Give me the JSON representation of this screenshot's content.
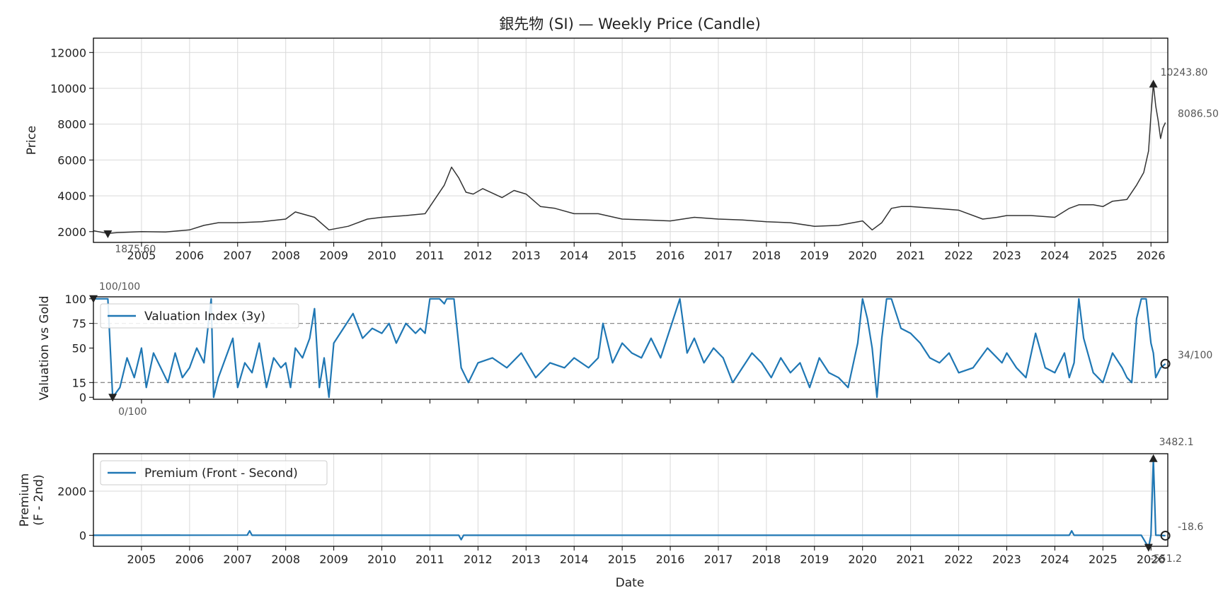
{
  "title": "銀先物 (SI) — Weekly Price (Candle)",
  "colors": {
    "price": "#333333",
    "series": "#1f77b4",
    "grid": "#d9d9d9",
    "ref": "#8c8c8c",
    "annot": "#555555",
    "frame": "#000000"
  },
  "x_ticks": [
    "2005",
    "2006",
    "2007",
    "2008",
    "2009",
    "2010",
    "2011",
    "2012",
    "2013",
    "2014",
    "2015",
    "2016",
    "2017",
    "2018",
    "2019",
    "2020",
    "2021",
    "2022",
    "2023",
    "2024",
    "2025",
    "2026"
  ],
  "x_ticks_bottom": [
    "2005",
    "2006",
    "2007",
    "2008",
    "2009",
    "2010",
    "2011",
    "2012",
    "2013",
    "2014",
    "2015",
    "2016",
    "2017",
    "2018",
    "2019",
    "2020",
    "2021",
    "2022",
    "2023",
    "2024",
    "2025",
    "2026"
  ],
  "xlabel": "Date",
  "chart_data": [
    {
      "type": "line",
      "title": "銀先物 (SI) — Weekly Price (Candle)",
      "ylabel": "Price",
      "ylim": [
        1400,
        12800
      ],
      "xlim": [
        2004.0,
        2026.35
      ],
      "yticks": [
        "2000",
        "4000",
        "6000",
        "8000",
        "10000",
        "12000"
      ],
      "grid": true,
      "series": [
        {
          "x": [
            2004.0,
            2004.3,
            2004.5,
            2005.0,
            2005.5,
            2006.0,
            2006.3,
            2006.6,
            2007.0,
            2007.5,
            2008.0,
            2008.2,
            2008.6,
            2008.9,
            2009.3,
            2009.7,
            2010.0,
            2010.5,
            2010.9,
            2011.1,
            2011.3,
            2011.45,
            2011.6,
            2011.75,
            2011.9,
            2012.1,
            2012.5,
            2012.75,
            2013.0,
            2013.3,
            2013.6,
            2014.0,
            2014.5,
            2015.0,
            2015.5,
            2016.0,
            2016.5,
            2017.0,
            2017.5,
            2018.0,
            2018.5,
            2019.0,
            2019.5,
            2020.0,
            2020.2,
            2020.4,
            2020.6,
            2020.8,
            2021.0,
            2021.5,
            2022.0,
            2022.5,
            2022.8,
            2023.0,
            2023.5,
            2024.0,
            2024.3,
            2024.5,
            2024.8,
            2025.0,
            2025.2,
            2025.5,
            2025.7,
            2025.85,
            2025.95,
            2026.0,
            2026.05,
            2026.1,
            2026.15,
            2026.2,
            2026.25,
            2026.3
          ],
          "y": [
            2050,
            1900,
            1950,
            2000,
            1980,
            2100,
            2350,
            2500,
            2500,
            2550,
            2700,
            3100,
            2800,
            2100,
            2300,
            2700,
            2800,
            2900,
            3000,
            3800,
            4600,
            5600,
            5000,
            4200,
            4100,
            4400,
            3900,
            4300,
            4100,
            3400,
            3300,
            3000,
            3000,
            2700,
            2650,
            2600,
            2800,
            2700,
            2650,
            2550,
            2500,
            2300,
            2350,
            2600,
            2100,
            2500,
            3300,
            3400,
            3400,
            3300,
            3200,
            2700,
            2800,
            2900,
            2900,
            2800,
            3300,
            3500,
            3500,
            3400,
            3700,
            3800,
            4600,
            5300,
            6500,
            8500,
            10243.8,
            9000,
            8200,
            7200,
            7800,
            8086.5
          ],
          "name": "",
          "drawn_as": "weekly candles (dark grey)"
        }
      ],
      "annotations": [
        {
          "label": "1875.60",
          "x": 2004.3,
          "y": 1875.6,
          "marker": "down-triangle"
        },
        {
          "label": "10243.80",
          "x": 2026.05,
          "y": 10243.8,
          "marker": "up-triangle"
        },
        {
          "label": "8086.50",
          "x": 2026.3,
          "y": 8086.5,
          "marker": "none"
        }
      ]
    },
    {
      "type": "line",
      "ylabel": "Valuation vs Gold",
      "ylim": [
        -2,
        102
      ],
      "xlim": [
        2004.0,
        2026.35
      ],
      "yticks": [
        "0",
        "15",
        "50",
        "75",
        "100"
      ],
      "reference_lines": [
        75,
        15
      ],
      "grid": false,
      "legend": "upper-left",
      "series": [
        {
          "name": "Valuation Index (3y)",
          "x": [
            2004.0,
            2004.1,
            2004.25,
            2004.3,
            2004.4,
            2004.55,
            2004.7,
            2004.85,
            2005.0,
            2005.1,
            2005.25,
            2005.4,
            2005.55,
            2005.7,
            2005.85,
            2006.0,
            2006.15,
            2006.3,
            2006.45,
            2006.5,
            2006.6,
            2006.75,
            2006.9,
            2007.0,
            2007.15,
            2007.3,
            2007.45,
            2007.6,
            2007.75,
            2007.9,
            2008.0,
            2008.1,
            2008.2,
            2008.35,
            2008.5,
            2008.6,
            2008.7,
            2008.8,
            2008.9,
            2009.0,
            2009.2,
            2009.4,
            2009.6,
            2009.8,
            2010.0,
            2010.15,
            2010.3,
            2010.5,
            2010.7,
            2010.8,
            2010.9,
            2011.0,
            2011.2,
            2011.3,
            2011.35,
            2011.45,
            2011.5,
            2011.65,
            2011.8,
            2012.0,
            2012.3,
            2012.6,
            2012.9,
            2013.2,
            2013.5,
            2013.8,
            2014.0,
            2014.3,
            2014.5,
            2014.6,
            2014.8,
            2015.0,
            2015.2,
            2015.4,
            2015.6,
            2015.8,
            2016.0,
            2016.2,
            2016.35,
            2016.5,
            2016.7,
            2016.9,
            2017.1,
            2017.3,
            2017.5,
            2017.7,
            2017.9,
            2018.1,
            2018.3,
            2018.5,
            2018.7,
            2018.9,
            2019.1,
            2019.3,
            2019.5,
            2019.7,
            2019.9,
            2020.0,
            2020.1,
            2020.2,
            2020.3,
            2020.4,
            2020.5,
            2020.6,
            2020.8,
            2021.0,
            2021.2,
            2021.4,
            2021.6,
            2021.8,
            2022.0,
            2022.3,
            2022.6,
            2022.9,
            2023.0,
            2023.2,
            2023.4,
            2023.6,
            2023.8,
            2024.0,
            2024.2,
            2024.3,
            2024.4,
            2024.5,
            2024.6,
            2024.8,
            2025.0,
            2025.2,
            2025.4,
            2025.5,
            2025.6,
            2025.7,
            2025.8,
            2025.9,
            2026.0,
            2026.05,
            2026.1,
            2026.2,
            2026.3
          ],
          "y": [
            100,
            100,
            100,
            100,
            0,
            10,
            40,
            20,
            50,
            10,
            45,
            30,
            15,
            45,
            20,
            30,
            50,
            35,
            100,
            0,
            20,
            40,
            60,
            10,
            35,
            25,
            55,
            10,
            40,
            30,
            35,
            10,
            50,
            40,
            60,
            90,
            10,
            40,
            0,
            55,
            70,
            85,
            60,
            70,
            65,
            75,
            55,
            75,
            65,
            70,
            65,
            100,
            100,
            95,
            100,
            100,
            100,
            30,
            15,
            35,
            40,
            30,
            45,
            20,
            35,
            30,
            40,
            30,
            40,
            75,
            35,
            55,
            45,
            40,
            60,
            40,
            70,
            100,
            45,
            60,
            35,
            50,
            40,
            15,
            30,
            45,
            35,
            20,
            40,
            25,
            35,
            10,
            40,
            25,
            20,
            10,
            55,
            100,
            80,
            50,
            0,
            60,
            100,
            100,
            70,
            65,
            55,
            40,
            35,
            45,
            25,
            30,
            50,
            35,
            45,
            30,
            20,
            65,
            30,
            25,
            45,
            20,
            35,
            100,
            60,
            25,
            15,
            45,
            30,
            20,
            15,
            80,
            100,
            100,
            55,
            45,
            20,
            30,
            34
          ],
          "drawn_as": "blue line"
        }
      ],
      "annotations": [
        {
          "label": "100/100",
          "x": 2004.0,
          "y": 100,
          "marker": "down-triangle"
        },
        {
          "label": "0/100",
          "x": 2004.4,
          "y": 0,
          "marker": "down-triangle"
        },
        {
          "label": "34/100",
          "x": 2026.3,
          "y": 34,
          "marker": "circle"
        }
      ]
    },
    {
      "type": "line",
      "ylabel": "Premium\n(F - 2nd)",
      "ylim": [
        -500,
        3700
      ],
      "xlim": [
        2004.0,
        2026.35
      ],
      "yticks": [
        "0",
        "2000"
      ],
      "grid": true,
      "legend": "upper-left",
      "xlabel": "Date",
      "series": [
        {
          "name": "Premium (Front - Second)",
          "x": [
            2004.0,
            2007.2,
            2007.25,
            2007.3,
            2011.6,
            2011.65,
            2011.7,
            2020.0,
            2024.3,
            2024.35,
            2024.4,
            2025.8,
            2025.95,
            2026.0,
            2026.05,
            2026.1,
            2026.15,
            2026.3
          ],
          "y": [
            0,
            5,
            200,
            0,
            0,
            -200,
            0,
            0,
            0,
            200,
            0,
            0,
            -551.2,
            0,
            3482.1,
            0,
            0,
            -18.6
          ],
          "drawn_as": "blue line"
        }
      ],
      "annotations": [
        {
          "label": "3482.1",
          "x": 2026.05,
          "y": 3482.1,
          "marker": "up-triangle"
        },
        {
          "label": "-551.2",
          "x": 2025.95,
          "y": -551.2,
          "marker": "down-triangle"
        },
        {
          "label": "-18.6",
          "x": 2026.3,
          "y": -18.6,
          "marker": "circle"
        }
      ]
    }
  ]
}
